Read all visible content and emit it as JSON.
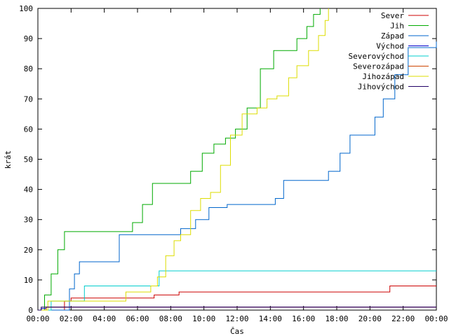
{
  "chart_data": {
    "type": "line",
    "title": "",
    "xlabel": "Čas",
    "ylabel": "krát",
    "xlim": [
      0,
      24
    ],
    "ylim": [
      0,
      100
    ],
    "xticks": [
      {
        "value": 0,
        "label": "00:00"
      },
      {
        "value": 2,
        "label": "02:00"
      },
      {
        "value": 4,
        "label": "04:00"
      },
      {
        "value": 6,
        "label": "06:00"
      },
      {
        "value": 8,
        "label": "08:00"
      },
      {
        "value": 10,
        "label": "10:00"
      },
      {
        "value": 12,
        "label": "12:00"
      },
      {
        "value": 14,
        "label": "14:00"
      },
      {
        "value": 16,
        "label": "16:00"
      },
      {
        "value": 18,
        "label": "18:00"
      },
      {
        "value": 20,
        "label": "20:00"
      },
      {
        "value": 22,
        "label": "22:00"
      },
      {
        "value": 24,
        "label": "00:00"
      }
    ],
    "yticks": [
      0,
      10,
      20,
      30,
      40,
      50,
      60,
      70,
      80,
      90,
      100
    ],
    "grid": false,
    "legend_position": "top-right",
    "series": [
      {
        "name": "Sever",
        "color": "#cc0000",
        "x": [
          0,
          1.6,
          2.0,
          6.2,
          7.0,
          8.5,
          21.2,
          24
        ],
        "y": [
          0,
          3,
          4,
          4,
          5,
          6,
          8,
          8
        ]
      },
      {
        "name": "Jih",
        "color": "#00aa00",
        "x": [
          0,
          0.4,
          0.8,
          1.2,
          1.6,
          5.3,
          5.7,
          6.3,
          6.9,
          8.6,
          9.2,
          9.9,
          10.6,
          11.3,
          11.9,
          12.6,
          13.4,
          14.2,
          15.0,
          15.6,
          16.2,
          16.6,
          17.0
        ],
        "y": [
          0,
          5,
          12,
          20,
          26,
          26,
          29,
          35,
          42,
          42,
          46,
          52,
          55,
          57,
          60,
          67,
          80,
          86,
          86,
          90,
          94,
          98,
          100
        ]
      },
      {
        "name": "Západ",
        "color": "#0066cc",
        "x": [
          0,
          1.9,
          2.2,
          2.5,
          4.6,
          4.9,
          7.0,
          8.2,
          8.6,
          9.5,
          10.3,
          11.4,
          13.5,
          14.3,
          14.8,
          17.0,
          17.5,
          18.2,
          18.8,
          19.8,
          20.3,
          20.8,
          21.5,
          22.3,
          24
        ],
        "y": [
          0,
          7,
          12,
          16,
          16,
          25,
          25,
          25,
          27,
          30,
          34,
          35,
          35,
          37,
          43,
          43,
          46,
          52,
          58,
          58,
          64,
          70,
          78,
          87,
          89
        ]
      },
      {
        "name": "Východ",
        "color": "#0000cc",
        "x": [
          0,
          0.2,
          0.5,
          24
        ],
        "y": [
          0,
          0.5,
          1,
          1
        ]
      },
      {
        "name": "Severovýchod",
        "color": "#00cccc",
        "x": [
          0,
          0.8,
          2.4,
          2.8,
          6.1,
          6.6,
          6.9,
          7.3,
          24
        ],
        "y": [
          0,
          3,
          3,
          8,
          8,
          8,
          8,
          13,
          13
        ]
      },
      {
        "name": "Severozápad",
        "color": "#cc4400",
        "x": [
          0,
          0.5,
          24
        ],
        "y": [
          0,
          1,
          1
        ]
      },
      {
        "name": "Jihozápad",
        "color": "#dddd00",
        "x": [
          0,
          0.6,
          4.8,
          5.3,
          6.8,
          7.2,
          7.7,
          8.2,
          8.6,
          9.2,
          9.8,
          10.4,
          11.0,
          11.6,
          12.3,
          13.2,
          13.8,
          14.4,
          15.1,
          15.6,
          16.3,
          16.9,
          17.3,
          17.5
        ],
        "y": [
          0,
          3,
          3,
          6,
          8,
          11,
          18,
          23,
          25,
          33,
          37,
          39,
          48,
          58,
          65,
          67,
          70,
          71,
          77,
          81,
          86,
          91,
          96,
          100
        ]
      },
      {
        "name": "Jihovýchod",
        "color": "#220066",
        "x": [
          0,
          0.2,
          24
        ],
        "y": [
          0,
          1,
          1
        ]
      }
    ]
  }
}
